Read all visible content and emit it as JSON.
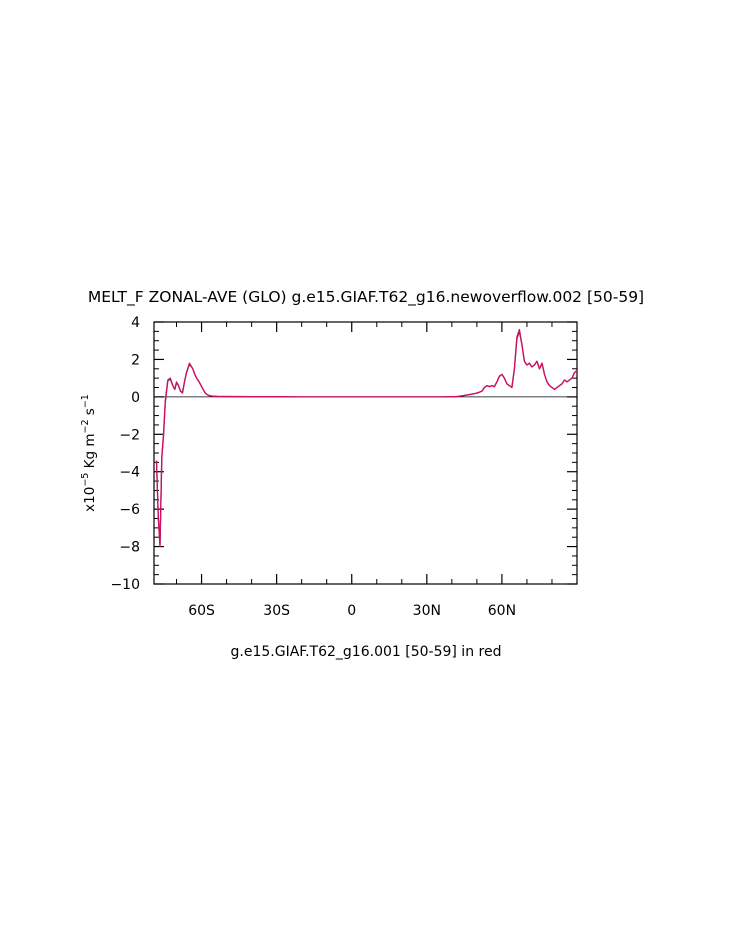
{
  "chart_data": {
    "type": "line",
    "title": "MELT_F ZONAL-AVE (GLO) g.e15.GIAF.T62_g16.newoverflow.002 [50-59]",
    "subtitle": "g.e15.GIAF.T62_g16.001 [50-59] in red",
    "ylabel": {
      "prefix": "x10",
      "exp": "−5",
      "unit_a": " Kg m",
      "exp2": "−2",
      "unit_b": " s",
      "exp3": "−1"
    },
    "xlim": [
      -79,
      90
    ],
    "ylim": [
      -10,
      4
    ],
    "x_ticks": [
      {
        "value": -60,
        "label": "60S"
      },
      {
        "value": -30,
        "label": "30S"
      },
      {
        "value": 0,
        "label": "0"
      },
      {
        "value": 30,
        "label": "30N"
      },
      {
        "value": 60,
        "label": "60N"
      }
    ],
    "y_ticks": [
      {
        "value": 4,
        "label": "4"
      },
      {
        "value": 2,
        "label": "2"
      },
      {
        "value": 0,
        "label": "0"
      },
      {
        "value": -2,
        "label": "−2"
      },
      {
        "value": -4,
        "label": "−4"
      },
      {
        "value": -6,
        "label": "−6"
      },
      {
        "value": -8,
        "label": "−8"
      },
      {
        "value": -10,
        "label": "−10"
      }
    ],
    "zero_line": true,
    "series": [
      {
        "color": "#d01060",
        "x": [
          -78,
          -77.3,
          -76.6,
          -75.9,
          -75.2,
          -74.5,
          -73.5,
          -72.5,
          -71.5,
          -70.7,
          -70,
          -69.2,
          -68.4,
          -67.6,
          -66.8,
          -66,
          -64.8,
          -63.5,
          -62.7,
          -62,
          -61,
          -60.2,
          -59.4,
          -58.5,
          -57.5,
          -56.5,
          -55.5,
          -54.5,
          -53.5,
          -50,
          -40,
          -30,
          -20,
          -10,
          0,
          10,
          20,
          30,
          36,
          40,
          42,
          44,
          46,
          48,
          50,
          52,
          53,
          54,
          55,
          56,
          57,
          58,
          59,
          60,
          61,
          62,
          63,
          64,
          65,
          66,
          67,
          68,
          69,
          70,
          71,
          72,
          73,
          74,
          75,
          76,
          77,
          78,
          79,
          80,
          81,
          82,
          83,
          84,
          85,
          86,
          87,
          88,
          89,
          90
        ],
        "values": [
          -3.4,
          -6.5,
          -8.0,
          -3.2,
          -2.0,
          -0.2,
          0.9,
          1.0,
          0.6,
          0.4,
          0.8,
          0.6,
          0.3,
          0.2,
          0.8,
          1.3,
          1.8,
          1.5,
          1.2,
          1.0,
          0.8,
          0.6,
          0.4,
          0.2,
          0.1,
          0.05,
          0.04,
          0.03,
          0.02,
          0.02,
          0.01,
          0.01,
          0.0,
          0.0,
          0.0,
          0.0,
          0.0,
          0.0,
          0.0,
          0.01,
          0.02,
          0.05,
          0.1,
          0.15,
          0.2,
          0.3,
          0.5,
          0.6,
          0.55,
          0.6,
          0.55,
          0.8,
          1.1,
          1.2,
          1.0,
          0.7,
          0.6,
          0.5,
          1.5,
          3.2,
          3.6,
          2.8,
          1.9,
          1.7,
          1.8,
          1.6,
          1.7,
          1.9,
          1.5,
          1.8,
          1.2,
          0.8,
          0.6,
          0.5,
          0.4,
          0.5,
          0.6,
          0.7,
          0.9,
          0.8,
          0.9,
          1.0,
          1.3,
          1.4
        ]
      },
      {
        "color": "#5a2d6e",
        "x": [
          -78,
          -77.3,
          -76.6,
          -75.9,
          -75.2,
          -74.5,
          -73.5,
          -72.5,
          -71.5,
          -70.7,
          -70,
          -69.2,
          -68.4,
          -67.6,
          -66.8,
          -66,
          -64.8,
          -63.5,
          -62.7,
          -62,
          -61,
          -60.2,
          -59.4,
          -58.5,
          -57.5,
          -56.5,
          -55.5,
          -54.5,
          -53.5,
          -50,
          -40,
          -30,
          -20,
          -10,
          0,
          10,
          20,
          30,
          36,
          40,
          42,
          44,
          46,
          48,
          50,
          52,
          53,
          54,
          55,
          56,
          57,
          58,
          59,
          60,
          61,
          62,
          63,
          64,
          65,
          66,
          67,
          68,
          69,
          70,
          71,
          72,
          73,
          74,
          75,
          76,
          77,
          78,
          79,
          80,
          81,
          82,
          83,
          84,
          85,
          86,
          87,
          88,
          89,
          90
        ],
        "values": [
          -3.4,
          -6.4,
          -7.9,
          -3.3,
          -2.1,
          -0.3,
          0.85,
          0.95,
          0.6,
          0.4,
          0.75,
          0.6,
          0.3,
          0.25,
          0.8,
          1.3,
          1.75,
          1.5,
          1.2,
          1.0,
          0.8,
          0.6,
          0.4,
          0.2,
          0.1,
          0.05,
          0.04,
          0.03,
          0.02,
          0.02,
          0.01,
          0.01,
          0.0,
          0.0,
          0.0,
          0.0,
          0.0,
          0.0,
          0.0,
          0.01,
          0.02,
          0.05,
          0.1,
          0.15,
          0.2,
          0.3,
          0.5,
          0.6,
          0.55,
          0.6,
          0.55,
          0.8,
          1.1,
          1.2,
          1.0,
          0.7,
          0.6,
          0.5,
          1.5,
          3.1,
          3.5,
          2.8,
          1.9,
          1.7,
          1.8,
          1.6,
          1.7,
          1.9,
          1.5,
          1.8,
          1.2,
          0.8,
          0.6,
          0.5,
          0.4,
          0.5,
          0.6,
          0.7,
          0.9,
          0.8,
          0.9,
          1.0,
          1.3,
          1.4
        ]
      }
    ]
  }
}
